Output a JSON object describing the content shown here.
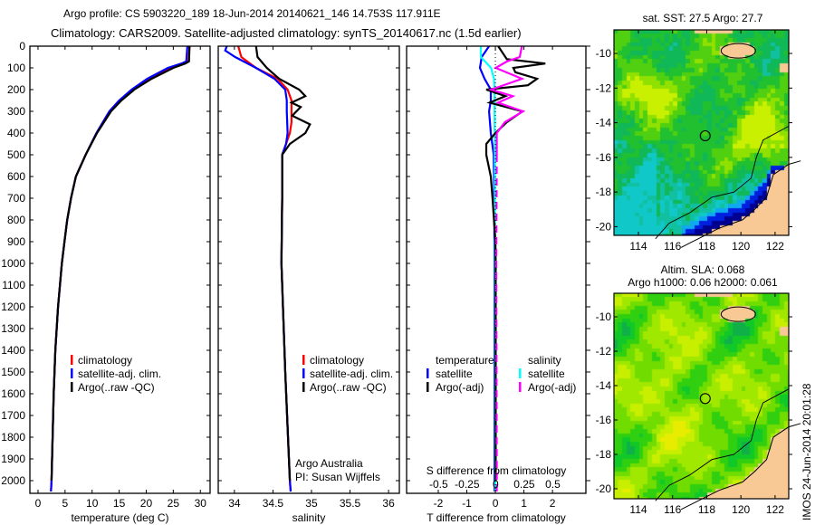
{
  "title": {
    "line1": "Argo profile: CS 5903220_189 18-Jun-2014 20140621_146 14.753S 117.911E",
    "line2": "Climatology: CARS2009. Satellite-adjusted climatology: synTS_20140617.nc (1.5d earlier)"
  },
  "footer_stamp": "IMOS 24-Jun-2014 20:01:28",
  "chart_data": [
    {
      "type": "line",
      "name": "temperature-profile",
      "xlabel": "temperature (deg C)",
      "ylabel": "depth",
      "xlim": [
        -1.5,
        31.8
      ],
      "ylim": [
        2058,
        0
      ],
      "xticks": [
        "0",
        "5",
        "10",
        "15",
        "20",
        "25",
        "30"
      ],
      "xtick_values": [
        0,
        5,
        10,
        15,
        20,
        25,
        30
      ],
      "yticks": [
        "0",
        "100",
        "200",
        "300",
        "400",
        "500",
        "600",
        "700",
        "800",
        "900",
        "1000",
        "1100",
        "1200",
        "1300",
        "1400",
        "1500",
        "1600",
        "1700",
        "1800",
        "1900",
        "2000"
      ],
      "ytick_values": [
        0,
        100,
        200,
        300,
        400,
        500,
        600,
        700,
        800,
        900,
        1000,
        1100,
        1200,
        1300,
        1400,
        1500,
        1600,
        1700,
        1800,
        1900,
        2000
      ],
      "legend": [
        "climatology",
        "satellite-adj. clim.",
        "Argo(..raw -QC)"
      ],
      "series": [
        {
          "name": "climatology",
          "color": "#ff0000",
          "depth": [
            0,
            70,
            80,
            100,
            150,
            200,
            250,
            300,
            400,
            500,
            600,
            700,
            800,
            900,
            1000,
            1200,
            1400,
            1600,
            1800,
            2000,
            2050
          ],
          "values": [
            28,
            27.8,
            27,
            24.5,
            20.5,
            17.5,
            15,
            13.2,
            10.8,
            8.8,
            7.0,
            6.1,
            5.4,
            4.9,
            4.4,
            3.7,
            3.2,
            2.9,
            2.7,
            2.5,
            2.4
          ]
        },
        {
          "name": "satellite-adj. clim.",
          "color": "#0000ff",
          "depth": [
            0,
            70,
            80,
            100,
            150,
            200,
            250,
            300,
            400,
            500,
            600,
            700,
            800,
            900,
            1000,
            1200,
            1400,
            1600,
            1800,
            2000,
            2050
          ],
          "values": [
            27.6,
            27.4,
            26.5,
            24,
            20.2,
            17.3,
            15,
            13.2,
            10.8,
            8.8,
            7.0,
            6.1,
            5.4,
            4.9,
            4.4,
            3.7,
            3.2,
            2.9,
            2.7,
            2.5,
            2.4
          ]
        },
        {
          "name": "Argo(..raw -QC)",
          "color": "#000000",
          "depth": [
            0,
            70,
            80,
            100,
            150,
            200,
            250,
            300,
            400,
            500,
            600,
            700,
            800,
            900,
            1000,
            1200,
            1400,
            1600,
            1800,
            2000
          ],
          "values": [
            28.0,
            27.9,
            27.2,
            25,
            21,
            17.8,
            15.4,
            13.5,
            10.9,
            8.8,
            7.0,
            6.1,
            5.4,
            4.9,
            4.4,
            3.7,
            3.2,
            2.9,
            2.7,
            2.5
          ]
        }
      ]
    },
    {
      "type": "line",
      "name": "salinity-profile",
      "xlabel": "salinity",
      "xlim": [
        33.79,
        36.14
      ],
      "ylim": [
        2058,
        0
      ],
      "xticks": [
        "34",
        "34.5",
        "35",
        "35.5",
        "36"
      ],
      "xtick_values": [
        34,
        34.5,
        35,
        35.5,
        36
      ],
      "legend": [
        "climatology",
        "satellite-adj. clim.",
        "Argo(..raw -QC)"
      ],
      "credits": [
        "Argo Australia",
        "PI: Susan Wijffels"
      ],
      "series": [
        {
          "name": "climatology",
          "color": "#ff0000",
          "depth": [
            0,
            50,
            100,
            150,
            200,
            250,
            300,
            350,
            400,
            450,
            500,
            700,
            1000,
            1500,
            2000,
            2050
          ],
          "values": [
            34.05,
            34.09,
            34.28,
            34.56,
            34.69,
            34.74,
            34.74,
            34.74,
            34.72,
            34.67,
            34.62,
            34.62,
            34.61,
            34.66,
            34.72,
            34.73
          ]
        },
        {
          "name": "satellite-adj. clim.",
          "color": "#0000ff",
          "depth": [
            0,
            20,
            50,
            100,
            150,
            200,
            250,
            300,
            400,
            450,
            500,
            700,
            1000,
            1500,
            2000,
            2050
          ],
          "values": [
            33.9,
            33.88,
            34.01,
            34.28,
            34.52,
            34.66,
            34.68,
            34.68,
            34.69,
            34.67,
            34.62,
            34.62,
            34.61,
            34.66,
            34.72,
            34.73
          ]
        },
        {
          "name": "Argo(..raw -QC)",
          "color": "#000000",
          "depth": [
            0,
            50,
            100,
            150,
            200,
            230,
            260,
            280,
            320,
            360,
            400,
            450,
            500,
            700,
            1000,
            1500,
            2000
          ],
          "values": [
            34.28,
            34.3,
            34.42,
            34.58,
            34.84,
            34.92,
            34.74,
            34.86,
            34.75,
            34.98,
            34.92,
            34.72,
            34.62,
            34.62,
            34.61,
            34.66,
            34.72
          ]
        }
      ]
    },
    {
      "type": "line",
      "name": "difference-profile",
      "xlabel": "T difference from climatology",
      "x2label": "S difference from climatology",
      "xlim": [
        -3.11,
        3.17
      ],
      "x2lim": [
        -0.78,
        0.79
      ],
      "ylim": [
        2058,
        0
      ],
      "xticks": [
        "-2",
        "-1",
        "0",
        "1",
        "2"
      ],
      "xtick_values": [
        -2,
        -1,
        0,
        1,
        2
      ],
      "x2ticks": [
        "-0.5",
        "-0.25",
        "0",
        "0.25",
        "0.5"
      ],
      "x2tick_values": [
        -0.5,
        -0.25,
        0,
        0.25,
        0.5
      ],
      "legend": {
        "temperature_header": "temperature",
        "salinity_header": "salinity",
        "t_items": [
          "satellite",
          "Argo(-adj)"
        ],
        "s_items": [
          "satellite",
          "Argo(-adj)"
        ]
      },
      "series": [
        {
          "name": "temperature satellite",
          "axis": "T",
          "color": "#0000ff",
          "depth": [
            0,
            50,
            100,
            150,
            200,
            250,
            300,
            400,
            500,
            700,
            1000,
            2000,
            2050
          ],
          "values": [
            -0.22,
            -0.48,
            -0.54,
            -0.38,
            -0.16,
            -0.16,
            -0.22,
            -0.16,
            -0.06,
            -0.04,
            -0.03,
            -0.03,
            -0.03
          ]
        },
        {
          "name": "salinity satellite",
          "axis": "S",
          "color": "#00ffff",
          "depth": [
            0,
            50,
            100,
            150,
            200,
            500,
            1000,
            2000,
            2050
          ],
          "values": [
            -0.13,
            -0.13,
            -0.04,
            -0.015,
            -0.01,
            -0.008,
            -0.005,
            -0.004,
            -0.004
          ]
        },
        {
          "name": "temperature Argo(-adj)",
          "axis": "T",
          "color": "#000000",
          "depth": [
            0,
            30,
            60,
            80,
            100,
            120,
            150,
            180,
            200,
            230,
            260,
            300,
            350,
            400,
            450,
            500,
            600,
            700,
            900,
            1000,
            2000
          ],
          "values": [
            0.1,
            0.25,
            0.4,
            1.75,
            0.63,
            0.7,
            1.46,
            1.14,
            -0.32,
            0.35,
            -0.2,
            0.95,
            0.4,
            0,
            -0.32,
            -0.32,
            -0.16,
            -0.1,
            0,
            0.01,
            0.01
          ]
        },
        {
          "name": "salinity Argo(-adj)",
          "axis": "S",
          "color": "#ff00ff",
          "dashed_below": 500,
          "depth": [
            0,
            50,
            70,
            100,
            150,
            200,
            230,
            260,
            300,
            350,
            400,
            500,
            1000,
            2000,
            2050
          ],
          "values": [
            0.23,
            0.21,
            0.1,
            0,
            0.23,
            -0.04,
            0.15,
            0.02,
            0.24,
            0.08,
            0.01,
            0.01,
            0.005,
            0.01,
            0.01
          ]
        }
      ]
    }
  ],
  "maps": [
    {
      "name": "sst-map",
      "title": "sat. SST: 27.5 Argo: 27.7",
      "lon_ticks": [
        "114",
        "116",
        "118",
        "120",
        "122"
      ],
      "lon_values": [
        114,
        116,
        118,
        120,
        122
      ],
      "lat_ticks": [
        "-10",
        "-12",
        "-14",
        "-16",
        "-18",
        "-20"
      ],
      "lat_values": [
        -10,
        -12,
        -14,
        -16,
        -18,
        -20
      ],
      "lonlim": [
        112.57,
        122.8
      ],
      "latlim": [
        -8.64,
        -20.5
      ],
      "profile_location": {
        "lon": 117.911,
        "lat": -14.753
      }
    },
    {
      "name": "sla-map",
      "title_line1": "Altim. SLA: 0.068",
      "title_line2": "Argo h1000: 0.06 h2000: 0.061",
      "lon_ticks": [
        "114",
        "116",
        "118",
        "120",
        "122"
      ],
      "lon_values": [
        114,
        116,
        118,
        120,
        122
      ],
      "lat_ticks": [
        "-10",
        "-12",
        "-14",
        "-16",
        "-18",
        "-20"
      ],
      "lat_values": [
        -10,
        -12,
        -14,
        -16,
        -18,
        -20
      ],
      "lonlim": [
        112.57,
        122.8
      ],
      "latlim": [
        -8.63,
        -20.58
      ],
      "profile_location": {
        "lon": 117.911,
        "lat": -14.753
      }
    }
  ],
  "colors": {
    "land": "#f9c995",
    "frame": "#000000"
  }
}
